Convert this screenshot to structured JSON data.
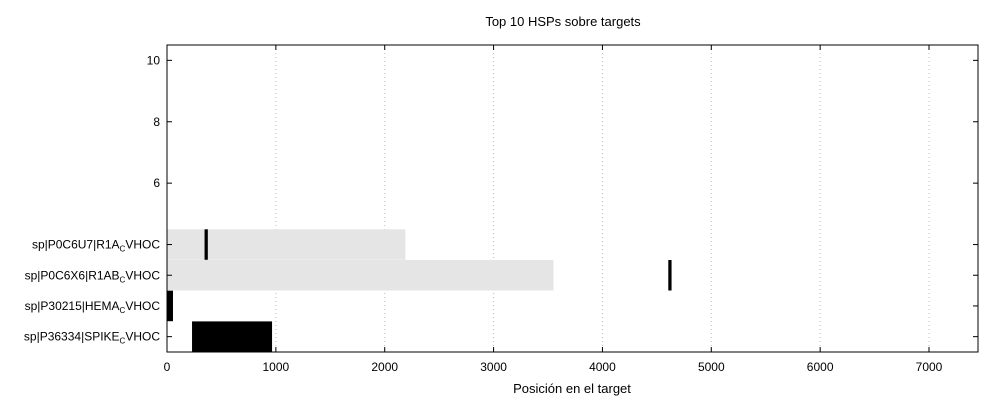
{
  "chart_data": {
    "type": "bar",
    "title": "Top 10 HSPs sobre targets",
    "xlabel": "Posición en el target",
    "ylabel": "",
    "xlim": [
      0,
      7450
    ],
    "ylim": [
      0.5,
      10.5
    ],
    "grid": "vertical-dotted",
    "x_ticks": [
      0,
      1000,
      2000,
      3000,
      4000,
      5000,
      6000,
      7000
    ],
    "y_ticks": [
      6,
      8,
      10
    ],
    "targets": [
      {
        "name": "sp|P0C6U7|R1A",
        "sub": "C",
        "suffix": "VHOC",
        "y": 4,
        "length": 2190
      },
      {
        "name": "sp|P0C6X6|R1AB",
        "sub": "C",
        "suffix": "VHOC",
        "y": 3,
        "length": 3550
      },
      {
        "name": "sp|P30215|HEMA",
        "sub": "C",
        "suffix": "VHOC",
        "y": 2,
        "length": 0
      },
      {
        "name": "sp|P36334|SPIKE",
        "sub": "C",
        "suffix": "VHOC",
        "y": 1,
        "length": 0
      }
    ],
    "hsps": [
      {
        "target": "sp|P0C6U7|R1ACVHOC",
        "y": 4,
        "start": 345,
        "end": 375
      },
      {
        "target": "sp|P0C6X6|R1ABCVHOC",
        "y": 3,
        "start": 4605,
        "end": 4635
      },
      {
        "target": "sp|P30215|HEMACVHOC",
        "y": 2,
        "start": 0,
        "end": 55
      },
      {
        "target": "sp|P36334|SPIKECVHOC",
        "y": 1,
        "start": 230,
        "end": 965
      }
    ]
  }
}
